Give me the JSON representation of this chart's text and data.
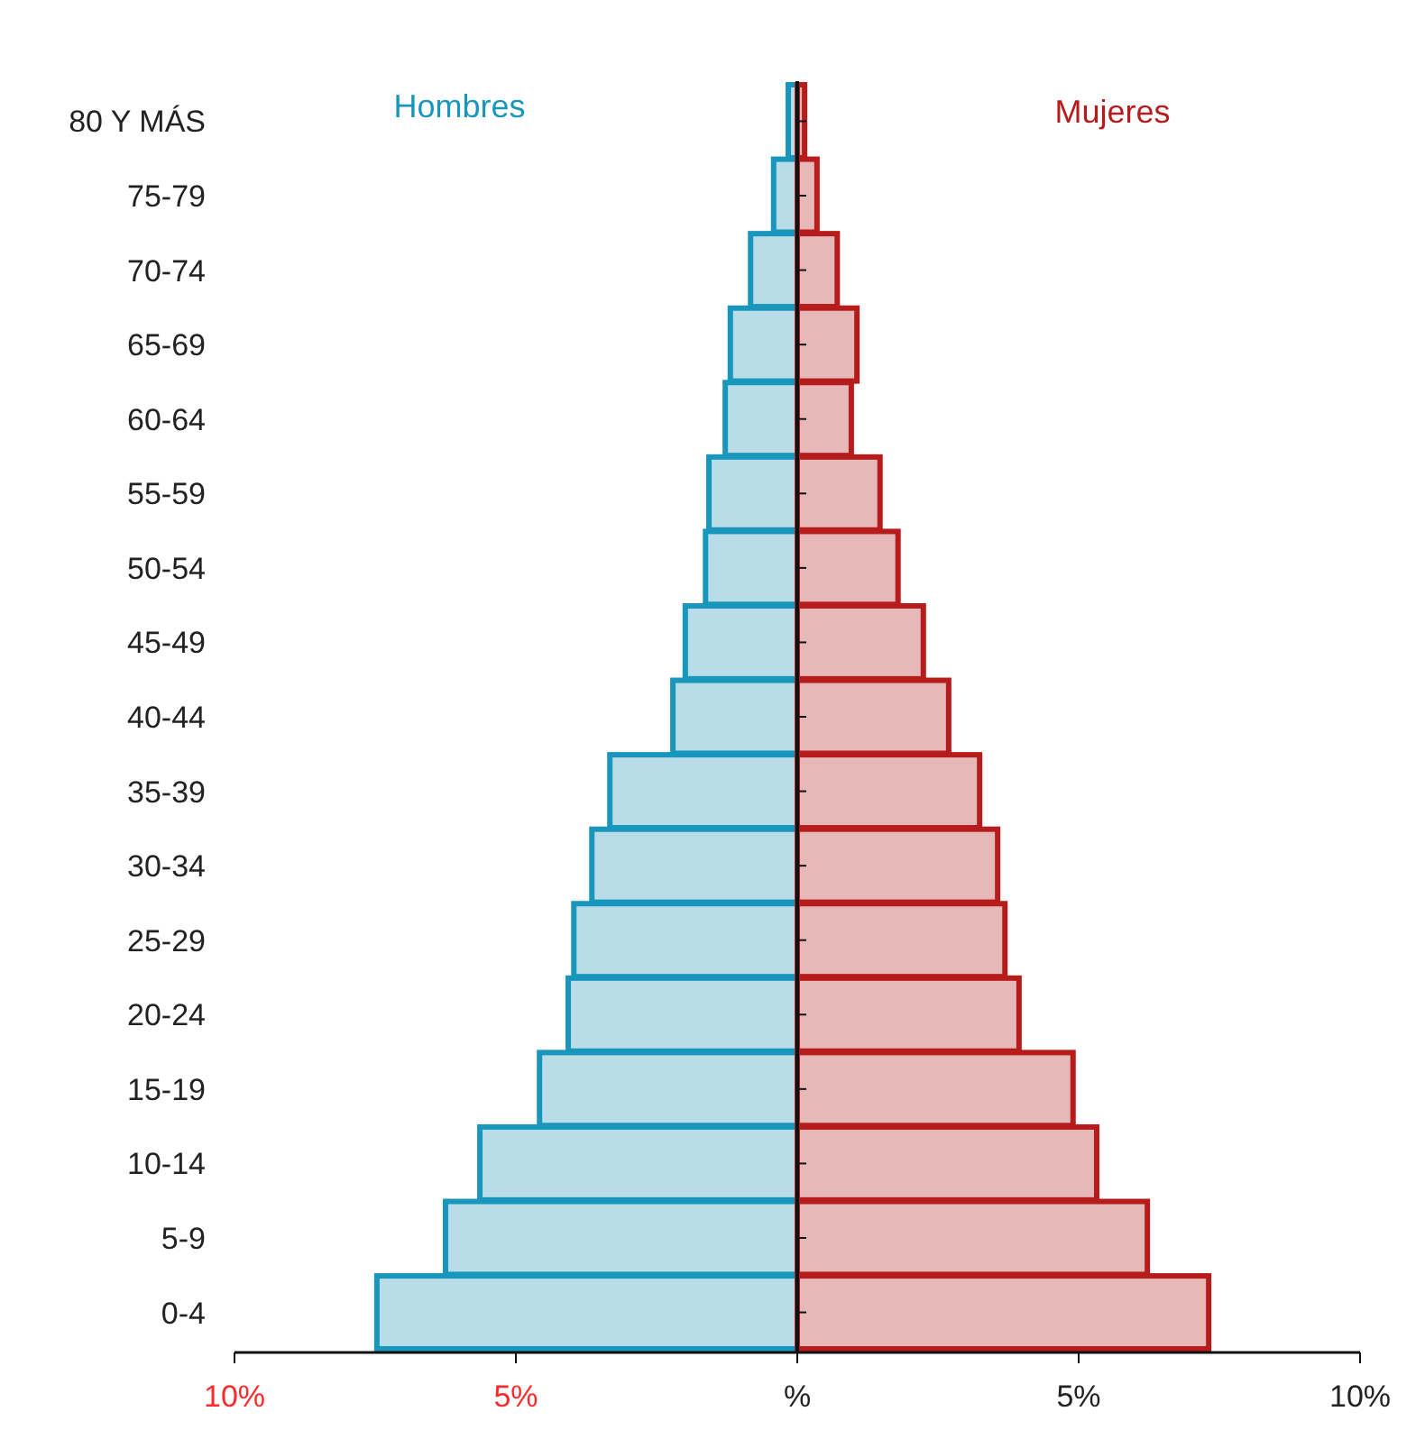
{
  "chart_data": {
    "type": "bar",
    "orientation": "horizontal",
    "categories": [
      "80 Y MÁS",
      "75-79",
      "70-74",
      "65-69",
      "60-64",
      "55-59",
      "50-54",
      "45-49",
      "40-44",
      "35-39",
      "30-34",
      "25-29",
      "20-24",
      "15-19",
      "10-14",
      "5-9",
      "0-4"
    ],
    "series": [
      {
        "name": "Hombres",
        "color": "#b8dde8",
        "values": [
          -0.16,
          -0.42,
          -0.83,
          -1.19,
          -1.28,
          -1.57,
          -1.63,
          -1.99,
          -2.21,
          -3.33,
          -3.65,
          -3.97,
          -4.07,
          -4.58,
          -5.64,
          -6.25,
          -7.47
        ]
      },
      {
        "name": "Mujeres",
        "color": "#e6b8b8",
        "values": [
          0.13,
          0.35,
          0.71,
          1.06,
          0.96,
          1.47,
          1.79,
          2.24,
          2.69,
          3.24,
          3.56,
          3.69,
          3.94,
          4.9,
          5.32,
          6.22,
          7.31
        ]
      }
    ],
    "xlim": [
      -10,
      10
    ],
    "xticks": [
      {
        "value": -10,
        "label": "10%"
      },
      {
        "value": -5,
        "label": "5%"
      },
      {
        "value": 0,
        "label": "%"
      },
      {
        "value": 5,
        "label": "5%"
      },
      {
        "value": 10,
        "label": "10%"
      }
    ],
    "stacked": true
  }
}
